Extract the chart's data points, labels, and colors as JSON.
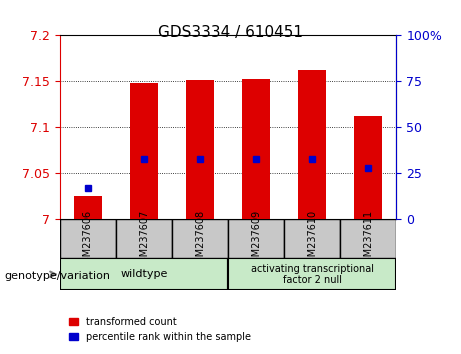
{
  "title": "GDS3334 / 610451",
  "categories": [
    "GSM237606",
    "GSM237607",
    "GSM237608",
    "GSM237609",
    "GSM237610",
    "GSM237611"
  ],
  "red_values": [
    7.025,
    7.148,
    7.152,
    7.153,
    7.162,
    7.112
  ],
  "blue_values_pct": [
    17,
    33,
    33,
    33,
    33,
    28
  ],
  "ylim_left": [
    7.0,
    7.2
  ],
  "ylim_right": [
    0,
    100
  ],
  "left_ticks": [
    7.0,
    7.05,
    7.1,
    7.15,
    7.2
  ],
  "right_ticks": [
    0,
    25,
    50,
    75,
    100
  ],
  "left_tick_labels": [
    "7",
    "7.05",
    "7.1",
    "7.15",
    "7.2"
  ],
  "right_tick_labels": [
    "0",
    "25",
    "50",
    "75",
    "100%"
  ],
  "wildtype_group": [
    0,
    1,
    2
  ],
  "atf2null_group": [
    3,
    4,
    5
  ],
  "wildtype_label": "wildtype",
  "atf2null_label": "activating transcriptional\nfactor 2 null",
  "genotype_label": "genotype/variation",
  "legend_red": "transformed count",
  "legend_blue": "percentile rank within the sample",
  "bar_color": "#dd0000",
  "dot_color": "#0000cc",
  "group_bg_color": "#c8eac8",
  "tick_area_bg": "#d0d0d0",
  "grid_color": "#000000",
  "left_axis_color": "#dd0000",
  "right_axis_color": "#0000cc"
}
